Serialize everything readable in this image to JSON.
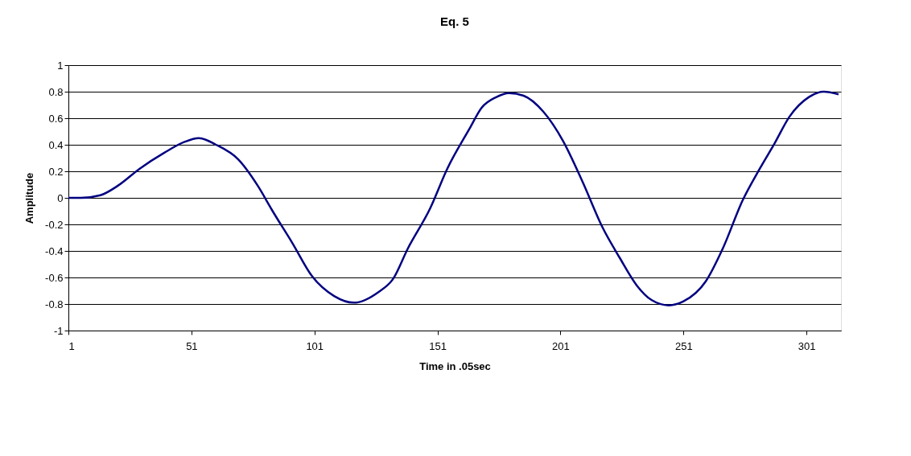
{
  "chart_data": {
    "type": "line",
    "title": "Eq. 5",
    "xlabel": "Time in .05sec",
    "ylabel": "Amplitude",
    "x": [
      1,
      6,
      14,
      21,
      30,
      40,
      48,
      54,
      61,
      70,
      78,
      84,
      92,
      100,
      109,
      117,
      127,
      133,
      139,
      148,
      155,
      164,
      169,
      175,
      180,
      186,
      194,
      202,
      210,
      218,
      225,
      232,
      238,
      245,
      251,
      260,
      267,
      275,
      282,
      288,
      294,
      302,
      308,
      314
    ],
    "series": [
      {
        "color": "#000080",
        "values": [
          0,
          0,
          0.02,
          0.09,
          0.22,
          0.34,
          0.42,
          0.45,
          0.4,
          0.29,
          0.09,
          -0.1,
          -0.34,
          -0.59,
          -0.74,
          -0.79,
          -0.71,
          -0.61,
          -0.38,
          -0.08,
          0.22,
          0.52,
          0.68,
          0.76,
          0.79,
          0.77,
          0.65,
          0.43,
          0.12,
          -0.22,
          -0.45,
          -0.66,
          -0.77,
          -0.81,
          -0.78,
          -0.63,
          -0.38,
          -0.02,
          0.22,
          0.41,
          0.61,
          0.76,
          0.8,
          0.78
        ]
      }
    ],
    "xlim": [
      1,
      315
    ],
    "xticks": [
      1,
      51,
      101,
      151,
      201,
      251,
      301
    ],
    "ylim": [
      -1,
      1
    ],
    "yticks": [
      -1,
      -0.8,
      -0.6,
      -0.4,
      -0.2,
      0,
      0.2,
      0.4,
      0.6,
      0.8,
      1
    ],
    "grid": "y",
    "marker": "none",
    "line_style": "solid"
  }
}
